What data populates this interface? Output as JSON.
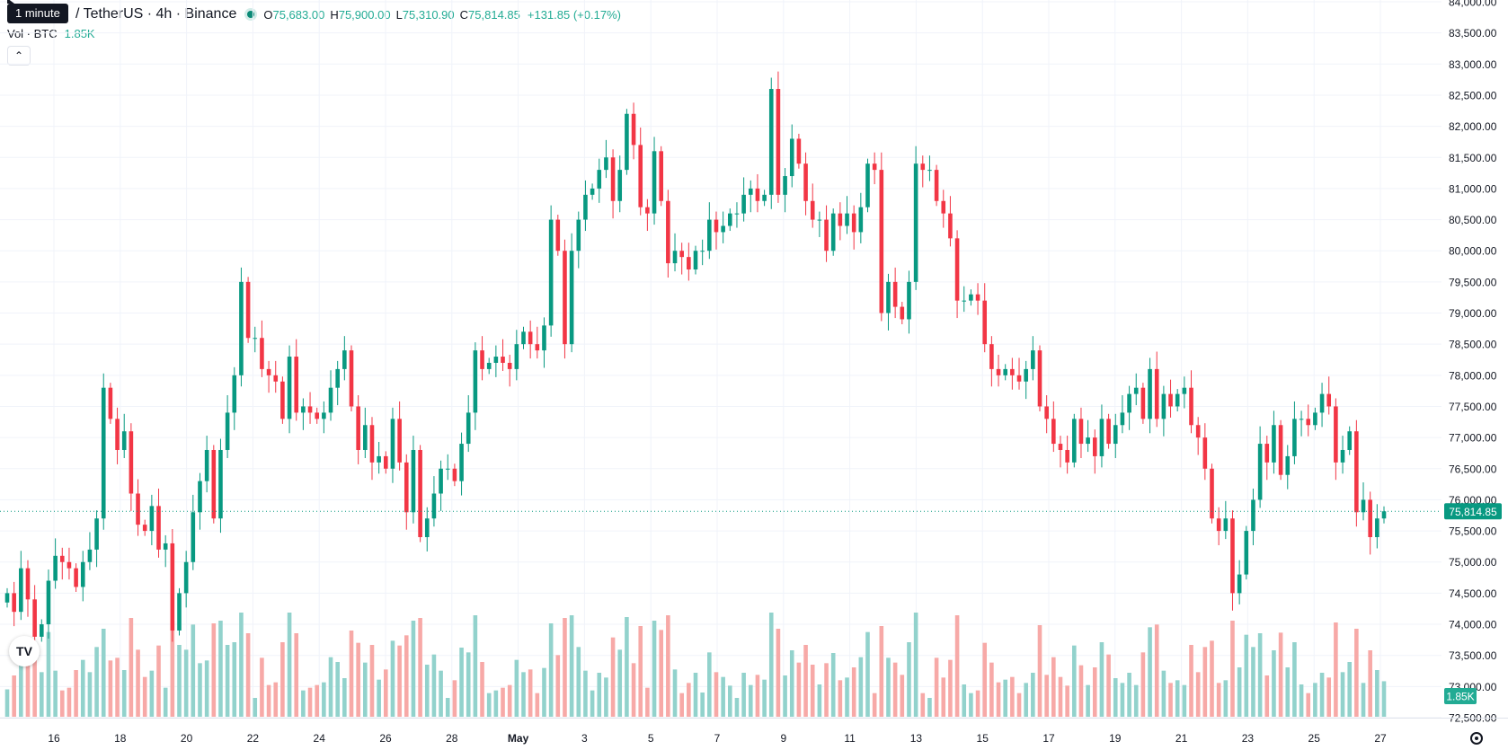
{
  "header": {
    "tooltip": "1 minute",
    "pair_title": "/ TetherUS · 4h · Binance",
    "ohlc": {
      "o_label": "O",
      "o_value": "75,683.00",
      "h_label": "H",
      "h_value": "75,900.00",
      "l_label": "L",
      "l_value": "75,310.90",
      "c_label": "C",
      "c_value": "75,814.85",
      "change": "+131.85 (+0.17%)"
    },
    "volume_label": "Vol · BTC",
    "volume_value": "1.85K",
    "collapse_icon": "chevron-up-icon",
    "logo_icon": "tradingview-logo"
  },
  "chart_data": {
    "type": "candlestick",
    "y_ticks": [
      "84,000.00",
      "83,500.00",
      "83,000.00",
      "82,500.00",
      "82,000.00",
      "81,500.00",
      "81,000.00",
      "80,500.00",
      "80,000.00",
      "79,500.00",
      "79,000.00",
      "78,500.00",
      "78,000.00",
      "77,500.00",
      "77,000.00",
      "76,500.00",
      "76,000.00",
      "75,500.00",
      "75,000.00",
      "74,500.00",
      "74,000.00",
      "73,500.00",
      "73,000.00",
      "72,500.00"
    ],
    "ylim": [
      72500,
      84000
    ],
    "x_ticks": [
      "16",
      "18",
      "20",
      "22",
      "24",
      "26",
      "28",
      "May",
      "3",
      "5",
      "7",
      "9",
      "11",
      "13",
      "15",
      "17",
      "19",
      "21",
      "23",
      "25",
      "27"
    ],
    "last_price_label": "75,814.85",
    "last_price": 75814.85,
    "volume_label": "1.85K",
    "colors": {
      "up": "#089981",
      "down": "#f23645",
      "up_vol": "#92d2cc",
      "down_vol": "#f7a9a7",
      "grid": "#f0f3fa"
    },
    "closes": [
      74500,
      74200,
      74900,
      74400,
      73800,
      74000,
      74700,
      75100,
      75000,
      74900,
      74600,
      75000,
      75200,
      75700,
      77800,
      77300,
      76800,
      77100,
      76100,
      75600,
      75500,
      75900,
      75200,
      75300,
      73900,
      74500,
      75000,
      75800,
      76300,
      76800,
      75700,
      76800,
      77400,
      78000,
      79500,
      78600,
      78600,
      78100,
      78000,
      77900,
      77300,
      78300,
      77400,
      77500,
      77400,
      77300,
      77400,
      77800,
      78100,
      78400,
      77500,
      76800,
      77200,
      76600,
      76700,
      76500,
      77300,
      76600,
      75800,
      76800,
      75400,
      75700,
      76100,
      76500,
      76500,
      76300,
      76900,
      77400,
      78400,
      78100,
      78200,
      78300,
      78200,
      78100,
      78500,
      78700,
      78500,
      78400,
      78800,
      80500,
      80000,
      78500,
      80000,
      80500,
      80900,
      81000,
      81300,
      81500,
      80800,
      81300,
      82200,
      81700,
      80700,
      80600,
      81600,
      80800,
      79800,
      80000,
      79900,
      79700,
      80000,
      80000,
      80500,
      80300,
      80400,
      80600,
      80600,
      80900,
      81000,
      80800,
      80900,
      82600,
      80900,
      81200,
      81800,
      81400,
      80800,
      80500,
      80500,
      80000,
      80600,
      80400,
      80600,
      80300,
      80700,
      81400,
      81300,
      79000,
      79500,
      79100,
      78900,
      79500,
      81400,
      81300,
      81300,
      80800,
      80600,
      80200,
      79200,
      79200,
      79300,
      79200,
      78500,
      78100,
      78000,
      78100,
      78000,
      77900,
      78100,
      78400,
      77500,
      77300,
      76900,
      76800,
      76600,
      77300,
      76900,
      77000,
      76700,
      77300,
      76900,
      77200,
      77400,
      77700,
      77800,
      77300,
      78100,
      77300,
      77700,
      77500,
      77700,
      77800,
      77200,
      77000,
      76500,
      75700,
      75500,
      75700,
      74500,
      74800,
      75500,
      76000,
      76900,
      76600,
      77200,
      76400,
      76700,
      77300,
      77300,
      77200,
      77400,
      77700,
      77500,
      76600,
      76800,
      77100,
      75800,
      76000,
      75400,
      75700,
      75814.85
    ],
    "x_axis_tick_positions_note": "",
    "volume_scale_max": 1.0
  }
}
